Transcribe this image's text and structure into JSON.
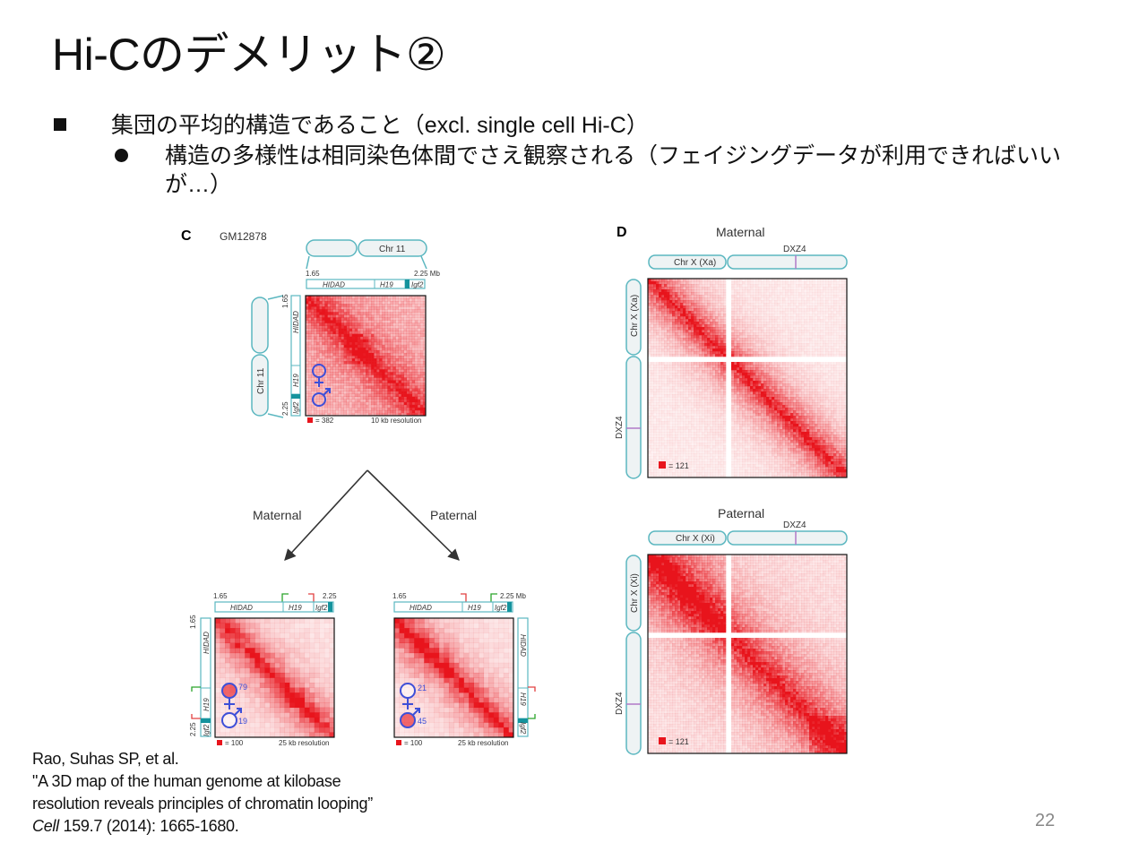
{
  "slide": {
    "title": "Hi-Cのデメリット②",
    "bullet1": "集団の平均的構造であること（excl. single cell Hi-C）",
    "bullet2": "構造の多様性は相同染色体間でさえ観察される（フェイジングデータが利用できればいいが…）",
    "page_number": "22"
  },
  "citation": {
    "line1": "Rao, Suhas SP, et al.",
    "line2": "\"A 3D map of the human genome at kilobase",
    "line3": "resolution reveals principles of chromatin looping”",
    "journal": "Cell",
    "rest": " 159.7 (2014): 1665-1680."
  },
  "figure": {
    "heatmap_red": "#e8141c",
    "panel_c": {
      "letter": "C",
      "cell_line": "GM12878",
      "chr_label": "Chr 11",
      "start": "1.65",
      "end": "2.25 Mb",
      "gene_hidad": "HIDAD",
      "gene_h19": "H19",
      "gene_igf2": "Igf2",
      "side_start": "1.65",
      "side_end": "2.25",
      "legend": "= 382",
      "resolution": "10 kb resolution",
      "maternal_label": "Maternal",
      "paternal_label": "Paternal",
      "mat_map": {
        "start": "1.65",
        "end": "2.25",
        "side_start": "1.65",
        "side_end": "2.25",
        "legend": "= 100",
        "resolution": "25 kb resolution",
        "count_female": "79",
        "count_male": "19"
      },
      "pat_map": {
        "start": "1.65",
        "end": "2.25 Mb",
        "legend": "= 100",
        "resolution": "25 kb resolution",
        "count_female": "21",
        "count_male": "45"
      }
    },
    "panel_d": {
      "letter": "D",
      "maternal_title": "Maternal",
      "paternal_title": "Paternal",
      "marker": "DXZ4",
      "chr_xa": "Chr X (Xa)",
      "chr_xi": "Chr X (Xi)",
      "legend_mat": "= 121",
      "legend_pat": "= 121"
    }
  }
}
